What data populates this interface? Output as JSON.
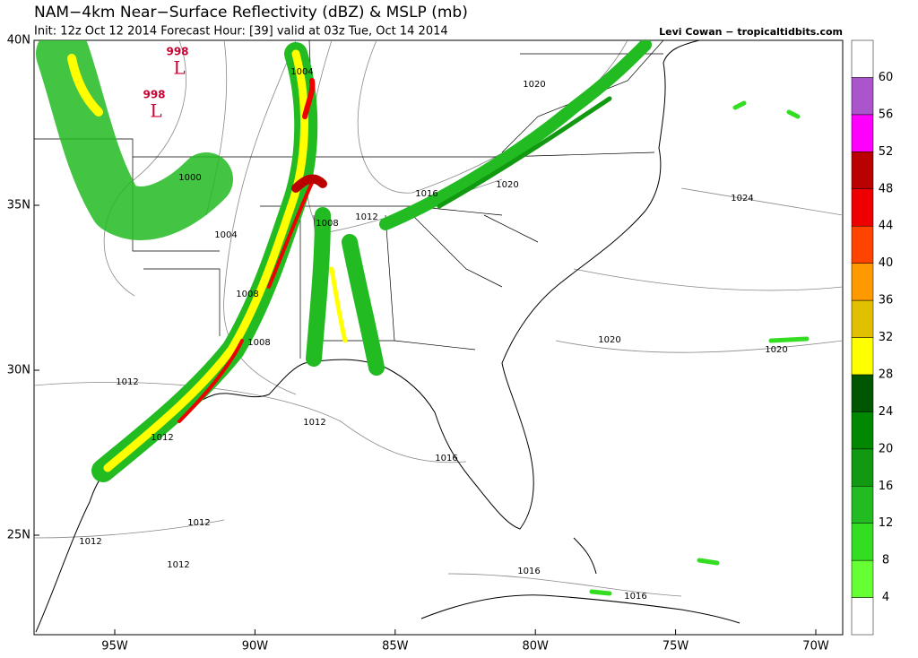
{
  "header": {
    "title": "NAM−4km Near−Surface Reflectivity (dBZ) & MSLP (mb)",
    "subtitle": "Init: 12z Oct 12 2014 Forecast Hour: [39] valid at 03z Tue, Oct 14 2014",
    "credit": "Levi Cowan − tropicaltidbits.com"
  },
  "map": {
    "lat_labels": [
      "40N",
      "35N",
      "30N",
      "25N"
    ],
    "lon_labels": [
      "95W",
      "90W",
      "85W",
      "80W",
      "75W",
      "70W"
    ],
    "lows": [
      {
        "pressure": "998",
        "symbol": "L"
      },
      {
        "pressure": "998",
        "symbol": "L"
      }
    ],
    "isobar_labels": [
      "1004",
      "1000",
      "1004",
      "1008",
      "1008",
      "1008",
      "1012",
      "1016",
      "1020",
      "1020",
      "1024",
      "1020",
      "1020",
      "1012",
      "1012",
      "1012",
      "1016",
      "1012",
      "1012",
      "1012",
      "1016",
      "1016"
    ]
  },
  "colorbar": {
    "levels": [
      4,
      8,
      12,
      16,
      20,
      24,
      28,
      32,
      36,
      40,
      44,
      48,
      52,
      56,
      60
    ],
    "colors": [
      "#ffffff",
      "#66ff33",
      "#33dd22",
      "#22bb22",
      "#119911",
      "#008800",
      "#005500",
      "#ffff00",
      "#e0c000",
      "#ff9900",
      "#ff4400",
      "#ee0000",
      "#bb0000",
      "#ff00ff",
      "#aa55cc",
      "#ffffff"
    ]
  }
}
